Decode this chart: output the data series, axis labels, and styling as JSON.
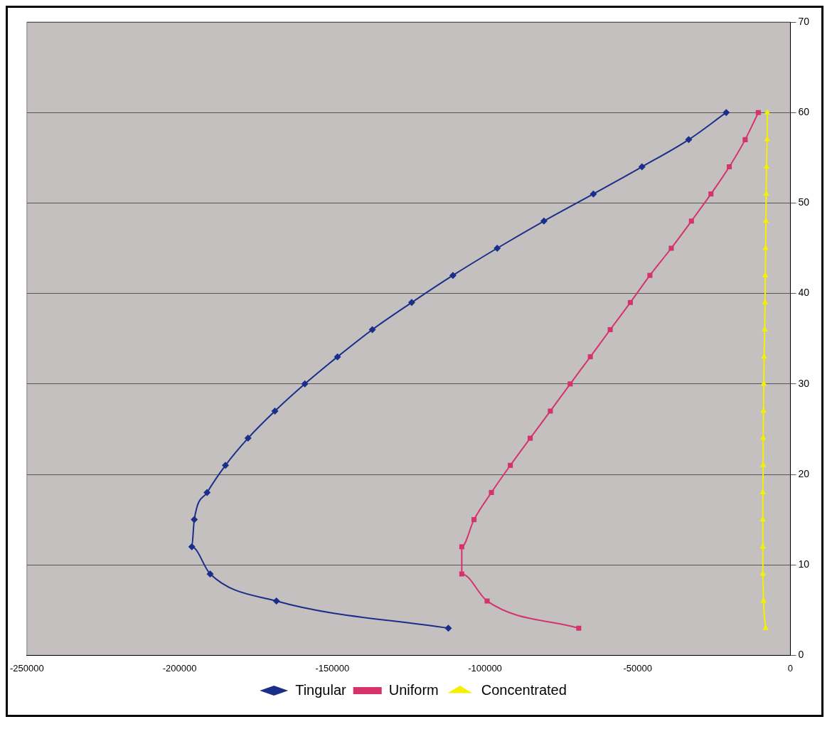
{
  "chart_data": {
    "type": "line",
    "xlim": [
      -250000,
      0
    ],
    "xticks": [
      -250000,
      -200000,
      -150000,
      -100000,
      -50000,
      0
    ],
    "ylim": [
      0,
      70
    ],
    "yticks": [
      0,
      10,
      20,
      30,
      40,
      50,
      60,
      70
    ],
    "grid": "y",
    "legend": "bottom",
    "line_style": "solid",
    "series": [
      {
        "name": "Tingular",
        "color": "#1a2f8a",
        "marker": "diamond",
        "x": [
          -112000,
          -168300,
          -190000,
          -196000,
          -195200,
          -191000,
          -185000,
          -177600,
          -168800,
          -159000,
          -148300,
          -136900,
          -124000,
          -110500,
          -96000,
          -80700,
          -64500,
          -48600,
          -33300,
          -21000
        ],
        "values": [
          3,
          6,
          9,
          12,
          15,
          18,
          21,
          24,
          27,
          30,
          33,
          36,
          39,
          42,
          45,
          48,
          51,
          54,
          57,
          60
        ]
      },
      {
        "name": "Uniform",
        "color": "#d6336c",
        "marker": "square",
        "x": [
          -69300,
          -99300,
          -107600,
          -107600,
          -103600,
          -97900,
          -91700,
          -85200,
          -78600,
          -72100,
          -65500,
          -59000,
          -52400,
          -46000,
          -39000,
          -32400,
          -26000,
          -20000,
          -14800,
          -10500
        ],
        "values": [
          3,
          6,
          9,
          12,
          15,
          18,
          21,
          24,
          27,
          30,
          33,
          36,
          39,
          42,
          45,
          48,
          51,
          54,
          57,
          60
        ]
      },
      {
        "name": "Concentrated",
        "color": "#f5f000",
        "marker": "triangle",
        "x": [
          -8100,
          -8800,
          -9000,
          -9000,
          -9000,
          -9000,
          -8900,
          -8900,
          -8800,
          -8700,
          -8600,
          -8400,
          -8300,
          -8200,
          -8100,
          -8000,
          -7900,
          -7800,
          -7600,
          -7600
        ],
        "values": [
          3,
          6,
          9,
          12,
          15,
          18,
          21,
          24,
          27,
          30,
          33,
          36,
          39,
          42,
          45,
          48,
          51,
          54,
          57,
          60
        ]
      }
    ]
  }
}
